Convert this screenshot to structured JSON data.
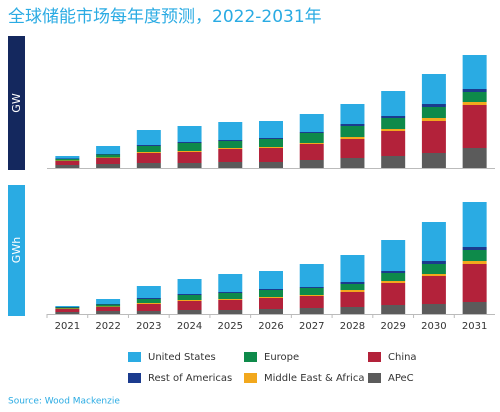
{
  "title": "全球储能市场每年度预测，2022-2031年",
  "source": "Source: Wood Mackenzie",
  "chart_data": [
    {
      "type": "bar",
      "stacked": true,
      "y_label": "GW",
      "categories": [
        "2021",
        "2022",
        "2023",
        "2024",
        "2025",
        "2026",
        "2027",
        "2028",
        "2029",
        "2030",
        "2031"
      ],
      "ylim": [
        0,
        130
      ],
      "series": [
        {
          "name": "APeC",
          "color": "#5b5b5b",
          "values": [
            3,
            4,
            5,
            5,
            6,
            6,
            8,
            10,
            12,
            15,
            20
          ]
        },
        {
          "name": "China",
          "color": "#b3223a",
          "values": [
            4,
            6,
            10,
            11,
            13,
            14,
            16,
            19,
            25,
            32,
            43
          ]
        },
        {
          "name": "Middle East & Africa",
          "color": "#f2a81d",
          "values": [
            0.5,
            0.5,
            1,
            1,
            1,
            1,
            1,
            2,
            2,
            3,
            3
          ]
        },
        {
          "name": "Europe",
          "color": "#0e8a4a",
          "values": [
            1.5,
            3,
            6,
            8,
            7,
            8,
            10,
            11,
            11,
            11,
            10
          ]
        },
        {
          "name": "Rest of Americas",
          "color": "#1b3b8e",
          "values": [
            0.5,
            0.5,
            1,
            1,
            1,
            1,
            1,
            2,
            2,
            3,
            3
          ]
        },
        {
          "name": "United States",
          "color": "#2aabe3",
          "values": [
            2.5,
            8,
            15,
            16,
            18,
            17,
            18,
            20,
            25,
            30,
            34
          ]
        }
      ]
    },
    {
      "type": "bar",
      "stacked": true,
      "y_label": "GWh",
      "categories": [
        "2021",
        "2022",
        "2023",
        "2024",
        "2025",
        "2026",
        "2027",
        "2028",
        "2029",
        "2030",
        "2031"
      ],
      "ylim": [
        0,
        130
      ],
      "series": [
        {
          "name": "APeC",
          "color": "#5b5b5b",
          "values": [
            2,
            3,
            3,
            4,
            4,
            5,
            6,
            7,
            9,
            10,
            12
          ]
        },
        {
          "name": "China",
          "color": "#b3223a",
          "values": [
            3,
            4,
            7,
            9,
            10,
            11,
            12,
            15,
            22,
            28,
            38
          ]
        },
        {
          "name": "Middle East & Africa",
          "color": "#f2a81d",
          "values": [
            0.5,
            0.5,
            1,
            1,
            1,
            1,
            1,
            2,
            2,
            2,
            3
          ]
        },
        {
          "name": "Europe",
          "color": "#0e8a4a",
          "values": [
            1,
            2,
            4,
            5,
            6,
            7,
            7,
            6,
            8,
            10,
            11
          ]
        },
        {
          "name": "Rest of Americas",
          "color": "#1b3b8e",
          "values": [
            0.5,
            0.5,
            1,
            1,
            1,
            1,
            1,
            2,
            2,
            3,
            3
          ]
        },
        {
          "name": "United States",
          "color": "#2aabe3",
          "values": [
            1,
            5,
            12,
            15,
            18,
            18,
            23,
            27,
            31,
            39,
            45
          ]
        }
      ]
    }
  ]
}
